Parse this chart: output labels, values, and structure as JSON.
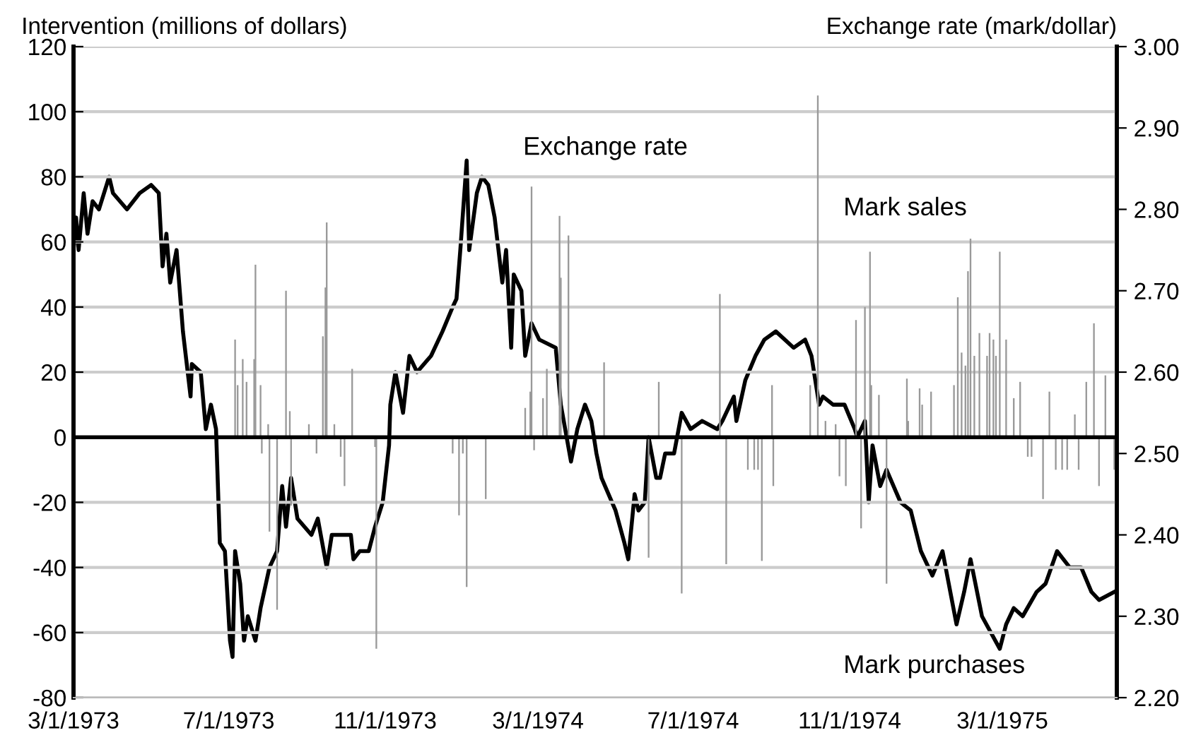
{
  "chart_data": {
    "type": "bar",
    "ylabel": "Intervention (millions of dollars)",
    "y2label": "Exchange rate (mark/dollar)",
    "annotations": [
      "Exchange rate",
      "Mark sales",
      "Mark purchases"
    ],
    "xlim": [
      "1973-03-01",
      "1975-05-30"
    ],
    "xticks": [
      {
        "value": "1973-03-01",
        "label": "3/1/1973"
      },
      {
        "value": "1973-07-01",
        "label": "7/1/1973"
      },
      {
        "value": "1973-11-01",
        "label": "11/1/1973"
      },
      {
        "value": "1974-03-01",
        "label": "3/1/1974"
      },
      {
        "value": "1974-07-01",
        "label": "7/1/1974"
      },
      {
        "value": "1974-11-01",
        "label": "11/1/1974"
      },
      {
        "value": "1975-03-01",
        "label": "3/1/1975"
      }
    ],
    "ylim": [
      -80,
      120
    ],
    "yticks": [
      -80,
      -60,
      -40,
      -20,
      0,
      20,
      40,
      60,
      80,
      100,
      120
    ],
    "y2lim": [
      2.2,
      3.0
    ],
    "y2ticks": [
      {
        "value": 2.2,
        "label": "2.20"
      },
      {
        "value": 2.3,
        "label": "2.30"
      },
      {
        "value": 2.4,
        "label": "2.40"
      },
      {
        "value": 2.5,
        "label": "2.50"
      },
      {
        "value": 2.6,
        "label": "2.60"
      },
      {
        "value": 2.7,
        "label": "2.70"
      },
      {
        "value": 2.8,
        "label": "2.80"
      },
      {
        "value": 2.9,
        "label": "2.90"
      },
      {
        "value": 3.0,
        "label": "3.00"
      }
    ],
    "grid": "y",
    "legend": false,
    "ref_lines": [
      {
        "axis": "y",
        "value": 0,
        "color": "#000000"
      }
    ],
    "series": [
      {
        "color": "#999999",
        "x": [
          "1973-07-06",
          "1973-07-08",
          "1973-07-12",
          "1973-07-15",
          "1973-07-21",
          "1973-07-22",
          "1973-07-26",
          "1973-07-27",
          "1973-08-01",
          "1973-08-02",
          "1973-08-08",
          "1973-08-15",
          "1973-08-18",
          "1973-08-19",
          "1973-09-02",
          "1973-09-08",
          "1973-09-13",
          "1973-09-15",
          "1973-09-16",
          "1973-09-22",
          "1973-09-27",
          "1973-09-30",
          "1973-10-06",
          "1973-10-24",
          "1973-10-25",
          "1973-12-24",
          "1973-12-29",
          "1974-01-01",
          "1974-01-04",
          "1974-01-19",
          "1974-02-19",
          "1974-02-23",
          "1974-02-24",
          "1974-02-26",
          "1974-03-05",
          "1974-03-08",
          "1974-03-18",
          "1974-03-19",
          "1974-03-25",
          "1974-04-22",
          "1974-05-27",
          "1974-06-04",
          "1974-06-22",
          "1974-07-22",
          "1974-07-27",
          "1974-08-13",
          "1974-08-18",
          "1974-08-21",
          "1974-08-24",
          "1974-09-01",
          "1974-09-02",
          "1974-10-01",
          "1974-10-07",
          "1974-10-13",
          "1974-10-21",
          "1974-10-24",
          "1974-10-29",
          "1974-11-06",
          "1974-11-10",
          "1974-11-13",
          "1974-11-17",
          "1974-11-18",
          "1974-11-24",
          "1974-11-30",
          "1974-12-16",
          "1974-12-17",
          "1974-12-26",
          "1974-12-28",
          "1975-01-04",
          "1975-01-22",
          "1975-01-25",
          "1975-01-28",
          "1975-01-31",
          "1975-02-02",
          "1975-02-04",
          "1975-02-07",
          "1975-02-11",
          "1975-02-17",
          "1975-02-19",
          "1975-02-22",
          "1975-02-24",
          "1975-02-27",
          "1975-03-04",
          "1975-03-10",
          "1975-03-15",
          "1975-03-21",
          "1975-03-24",
          "1975-04-01",
          "1975-04-02",
          "1975-04-07",
          "1975-04-12",
          "1975-04-17",
          "1975-04-21",
          "1975-04-27",
          "1975-04-30",
          "1975-05-06",
          "1975-05-12",
          "1975-05-16",
          "1975-05-21",
          "1975-05-28"
        ],
        "values": [
          30,
          16,
          24,
          17,
          24,
          53,
          16,
          -5,
          4,
          -29,
          -53,
          45,
          8,
          -21,
          4,
          -5,
          31,
          46,
          66,
          4,
          -6,
          -15,
          21,
          -3,
          -65,
          -5,
          -24,
          -5,
          -46,
          -19,
          9,
          14,
          77,
          -4,
          12,
          21,
          68,
          49,
          62,
          23,
          -37,
          17,
          -48,
          44,
          -39,
          -10,
          -10,
          -10,
          -38,
          16,
          -15,
          16,
          105,
          5,
          4,
          -12,
          -15,
          36,
          -28,
          40,
          57,
          16,
          13,
          -45,
          18,
          5,
          15,
          10,
          14,
          16,
          43,
          26,
          22,
          51,
          61,
          25,
          32,
          25,
          32,
          30,
          25,
          57,
          30,
          12,
          17,
          -6,
          -6,
          null,
          -19,
          14,
          -10,
          -10,
          -10,
          7,
          -10,
          17,
          35,
          -15,
          19,
          -10
        ]
      },
      {
        "type": "line",
        "axis": "y2",
        "color": "#000000",
        "line_style": "solid",
        "marker": "none",
        "x": [
          "1973-03-01",
          "1973-03-03",
          "1973-03-05",
          "1973-03-09",
          "1973-03-12",
          "1973-03-16",
          "1973-03-21",
          "1973-03-29",
          "1973-04-01",
          "1973-04-12",
          "1973-04-22",
          "1973-05-01",
          "1973-05-07",
          "1973-05-10",
          "1973-05-13",
          "1973-05-16",
          "1973-05-21",
          "1973-05-26",
          "1973-06-01",
          "1973-06-02",
          "1973-06-09",
          "1973-06-13",
          "1973-06-17",
          "1973-06-21",
          "1973-06-24",
          "1973-06-28",
          "1973-07-02",
          "1973-07-04",
          "1973-07-06",
          "1973-07-10",
          "1973-07-13",
          "1973-07-16",
          "1973-07-22",
          "1973-07-26",
          "1973-08-02",
          "1973-08-08",
          "1973-08-12",
          "1973-08-15",
          "1973-08-19",
          "1973-08-24",
          "1973-09-04",
          "1973-09-09",
          "1973-09-16",
          "1973-09-20",
          "1973-10-05",
          "1973-10-07",
          "1973-10-12",
          "1973-10-19",
          "1973-10-24",
          "1973-10-30",
          "1973-11-04",
          "1973-11-05",
          "1973-11-09",
          "1973-11-15",
          "1973-11-20",
          "1973-11-26",
          "1973-12-07",
          "1973-12-16",
          "1973-12-24",
          "1973-12-27",
          "1973-12-30",
          "1974-01-04",
          "1974-01-06",
          "1974-01-12",
          "1974-01-16",
          "1974-01-21",
          "1974-01-26",
          "1974-02-01",
          "1974-02-04",
          "1974-02-08",
          "1974-02-10",
          "1974-02-16",
          "1974-02-19",
          "1974-02-24",
          "1974-03-02",
          "1974-03-15",
          "1974-03-19",
          "1974-03-27",
          "1974-04-01",
          "1974-04-07",
          "1974-04-12",
          "1974-04-16",
          "1974-04-20",
          "1974-05-01",
          "1974-05-08",
          "1974-05-11",
          "1974-05-16",
          "1974-05-19",
          "1974-05-24",
          "1974-05-27",
          "1974-06-02",
          "1974-06-05",
          "1974-06-09",
          "1974-06-16",
          "1974-06-22",
          "1974-06-29",
          "1974-07-08",
          "1974-07-20",
          "1974-07-24",
          "1974-08-02",
          "1974-08-04",
          "1974-08-11",
          "1974-08-19",
          "1974-08-26",
          "1974-09-04",
          "1974-09-18",
          "1974-09-27",
          "1974-10-02",
          "1974-10-08",
          "1974-10-11",
          "1974-10-19",
          "1974-10-28",
          "1974-11-05",
          "1974-11-07",
          "1974-11-13",
          "1974-11-16",
          "1974-11-19",
          "1974-11-25",
          "1974-11-30",
          "1974-12-11",
          "1974-12-19",
          "1974-12-27",
          "1975-01-05",
          "1975-01-13",
          "1975-01-24",
          "1975-01-30",
          "1975-02-04",
          "1975-02-13",
          "1975-02-27",
          "1975-03-04",
          "1975-03-10",
          "1975-03-17",
          "1975-03-28",
          "1975-04-04",
          "1975-04-13",
          "1975-04-23",
          "1975-05-02",
          "1975-05-10",
          "1975-05-16",
          "1975-05-28"
        ],
        "values": [
          2.75,
          2.79,
          2.75,
          2.82,
          2.77,
          2.81,
          2.8,
          2.84,
          2.82,
          2.8,
          2.82,
          2.83,
          2.82,
          2.73,
          2.77,
          2.71,
          2.75,
          2.65,
          2.57,
          2.61,
          2.6,
          2.53,
          2.56,
          2.53,
          2.39,
          2.38,
          2.27,
          2.25,
          2.38,
          2.34,
          2.27,
          2.3,
          2.27,
          2.31,
          2.36,
          2.38,
          2.46,
          2.41,
          2.47,
          2.42,
          2.4,
          2.42,
          2.36,
          2.4,
          2.4,
          2.37,
          2.38,
          2.38,
          2.41,
          2.44,
          2.51,
          2.56,
          2.6,
          2.55,
          2.62,
          2.6,
          2.62,
          2.65,
          2.68,
          2.69,
          2.75,
          2.86,
          2.75,
          2.82,
          2.84,
          2.83,
          2.79,
          2.71,
          2.75,
          2.63,
          2.72,
          2.7,
          2.62,
          2.66,
          2.64,
          2.63,
          2.56,
          2.49,
          2.53,
          2.56,
          2.54,
          2.5,
          2.47,
          2.43,
          2.39,
          2.37,
          2.45,
          2.43,
          2.44,
          2.52,
          2.47,
          2.47,
          2.5,
          2.5,
          2.55,
          2.53,
          2.54,
          2.53,
          2.54,
          2.57,
          2.54,
          2.59,
          2.62,
          2.64,
          2.65,
          2.63,
          2.64,
          2.62,
          2.56,
          2.57,
          2.56,
          2.56,
          2.53,
          2.52,
          2.54,
          2.44,
          2.51,
          2.46,
          2.48,
          2.44,
          2.43,
          2.38,
          2.35,
          2.38,
          2.29,
          2.33,
          2.37,
          2.3,
          2.26,
          2.29,
          2.31,
          2.3,
          2.33,
          2.34,
          2.38,
          2.36,
          2.36,
          2.33,
          2.32,
          2.33
        ]
      }
    ]
  }
}
